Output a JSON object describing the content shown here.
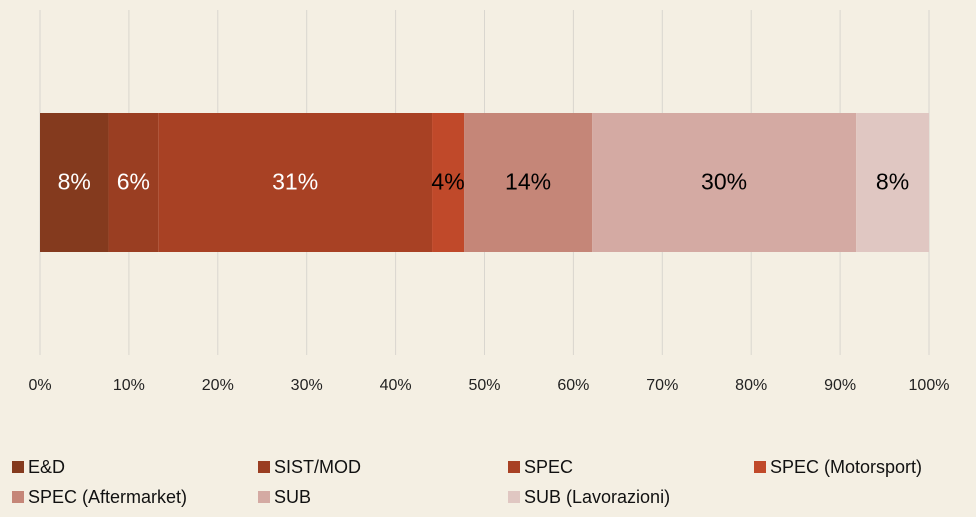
{
  "chart_data": {
    "type": "bar",
    "orientation": "horizontal",
    "stacked": true,
    "grid": true,
    "legend": "bottom",
    "categories": [
      null
    ],
    "series": [
      {
        "name": "E&D",
        "color": "#843a1e",
        "label_color": "#ffffff",
        "values": [
          7.7
        ],
        "value_labels": [
          "8%"
        ]
      },
      {
        "name": "SIST/MOD",
        "color": "#9a3e22",
        "label_color": "#ffffff",
        "values": [
          5.6
        ],
        "value_labels": [
          "6%"
        ]
      },
      {
        "name": "SPEC",
        "color": "#a84124",
        "label_color": "#ffffff",
        "values": [
          30.8
        ],
        "value_labels": [
          "31%"
        ]
      },
      {
        "name": "SPEC (Motorsport)",
        "color": "#c0492a",
        "label_color": "#000000",
        "values": [
          3.6
        ],
        "value_labels": [
          "4%"
        ]
      },
      {
        "name": "SPEC (Aftermarket)",
        "color": "#c58678",
        "label_color": "#000000",
        "values": [
          14.4
        ],
        "value_labels": [
          "14%"
        ]
      },
      {
        "name": "SUB",
        "color": "#d4aaa3",
        "label_color": "#000000",
        "values": [
          29.7
        ],
        "value_labels": [
          "30%"
        ]
      },
      {
        "name": "SUB (Lavorazioni)",
        "color": "#e0c7c2",
        "label_color": "#000000",
        "values": [
          8.2
        ],
        "value_labels": [
          "8%"
        ]
      }
    ],
    "xlim": [
      0,
      100
    ],
    "xticks": [
      {
        "value": 0,
        "label": "0%"
      },
      {
        "value": 10,
        "label": "10%"
      },
      {
        "value": 20,
        "label": "20%"
      },
      {
        "value": 30,
        "label": "30%"
      },
      {
        "value": 40,
        "label": "40%"
      },
      {
        "value": 50,
        "label": "50%"
      },
      {
        "value": 60,
        "label": "60%"
      },
      {
        "value": 70,
        "label": "70%"
      },
      {
        "value": 80,
        "label": "80%"
      },
      {
        "value": 90,
        "label": "90%"
      },
      {
        "value": 100,
        "label": "100%"
      }
    ]
  }
}
